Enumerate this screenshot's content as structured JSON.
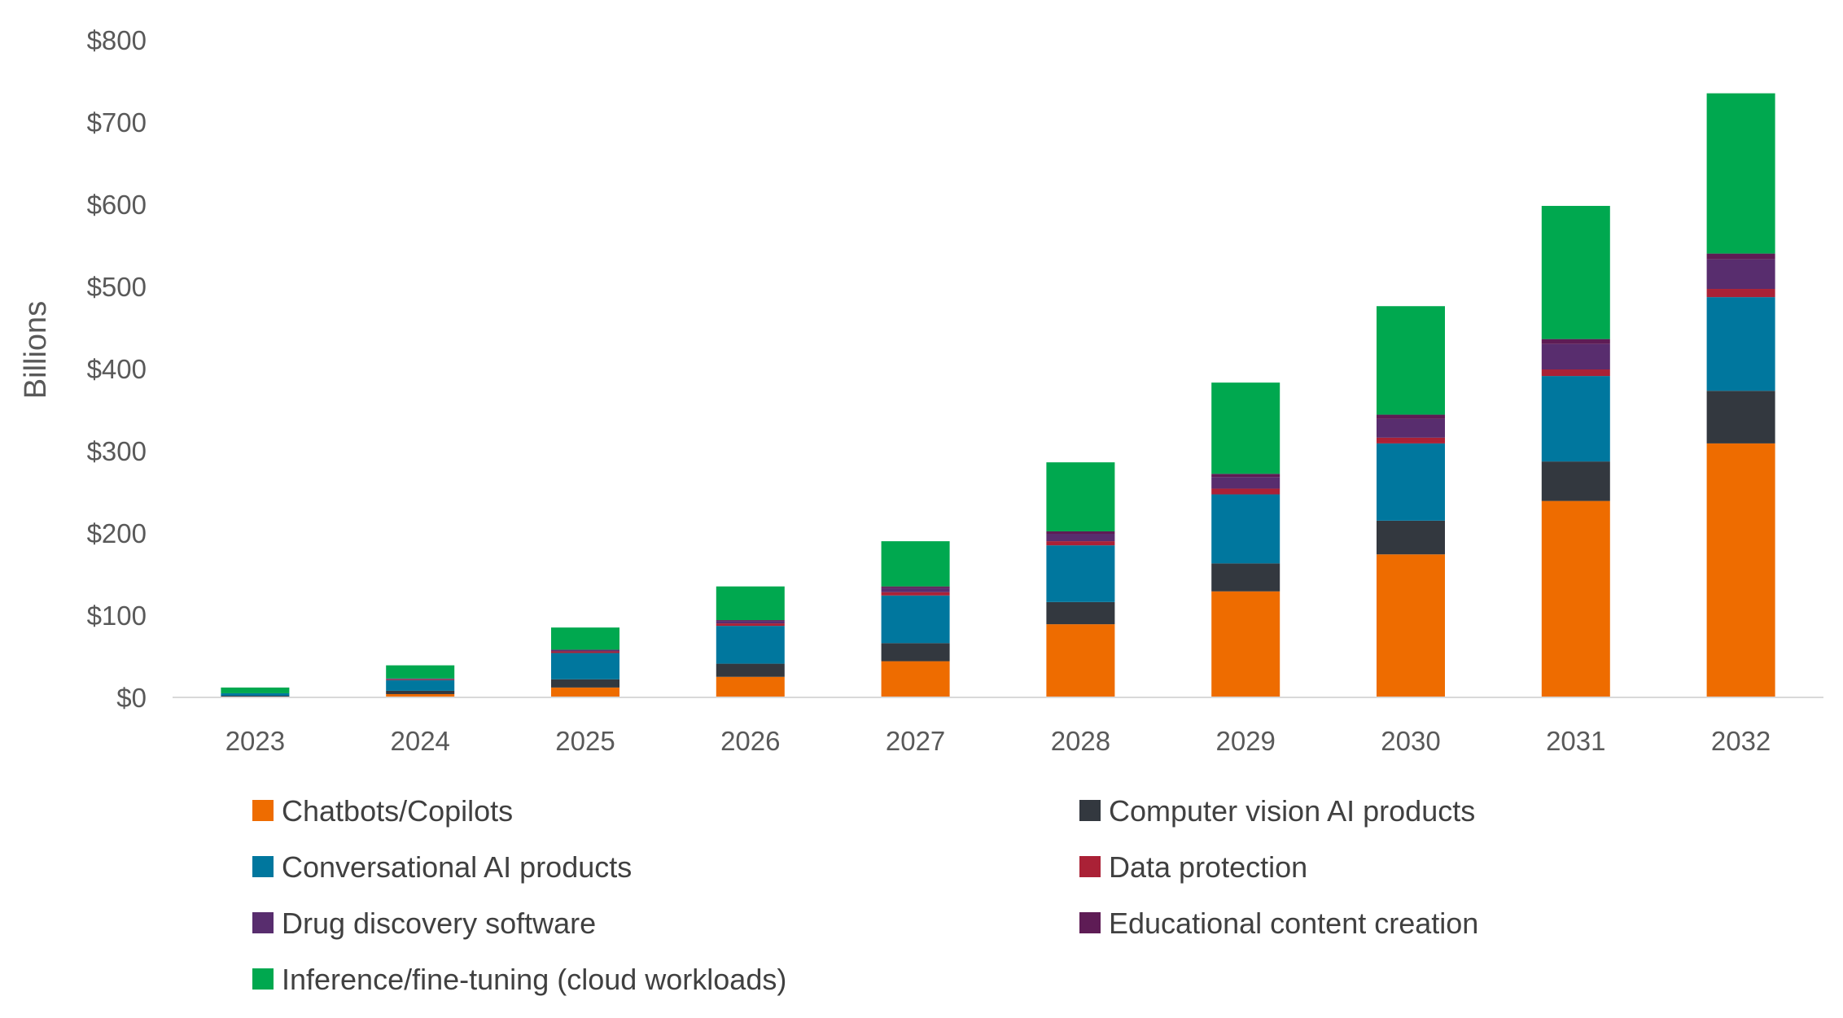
{
  "chart_data": {
    "type": "bar",
    "stacked": true,
    "title": "",
    "xlabel": "",
    "ylabel": "Billions",
    "ylim": [
      0,
      800
    ],
    "yticks": [
      "$0",
      "$100",
      "$200",
      "$300",
      "$400",
      "$500",
      "$600",
      "$700",
      "$800"
    ],
    "ytick_values": [
      0,
      100,
      200,
      300,
      400,
      500,
      600,
      700,
      800
    ],
    "grid": false,
    "legend_position": "bottom",
    "categories": [
      "2023",
      "2024",
      "2025",
      "2026",
      "2027",
      "2028",
      "2029",
      "2030",
      "2031",
      "2032"
    ],
    "series": [
      {
        "name": "Chatbots/Copilots",
        "color": "#EE6C00",
        "values": [
          1,
          4,
          12,
          25,
          44,
          89,
          129,
          174,
          239,
          309
        ]
      },
      {
        "name": "Computer vision AI products",
        "color": "#33383F",
        "values": [
          1,
          4,
          10,
          16,
          22,
          27,
          34,
          41,
          48,
          64
        ]
      },
      {
        "name": "Conversational AI products",
        "color": "#00779E",
        "values": [
          3,
          13,
          32,
          46,
          58,
          69,
          84,
          94,
          104,
          114
        ]
      },
      {
        "name": "Data protection",
        "color": "#AA2136",
        "values": [
          0,
          1,
          2,
          3,
          4,
          5,
          7,
          7,
          8,
          10
        ]
      },
      {
        "name": "Drug discovery software",
        "color": "#582D6E",
        "values": [
          0,
          1,
          2,
          3,
          5,
          9,
          14,
          23,
          31,
          36
        ]
      },
      {
        "name": "Educational content creation",
        "color": "#5E1C55",
        "values": [
          0,
          0,
          0,
          1,
          2,
          3,
          4,
          5,
          6,
          7
        ]
      },
      {
        "name": "Inference/fine-tuning (cloud workloads)",
        "color": "#00A84F",
        "values": [
          7,
          16,
          27,
          41,
          55,
          84,
          111,
          132,
          162,
          195
        ]
      }
    ]
  }
}
